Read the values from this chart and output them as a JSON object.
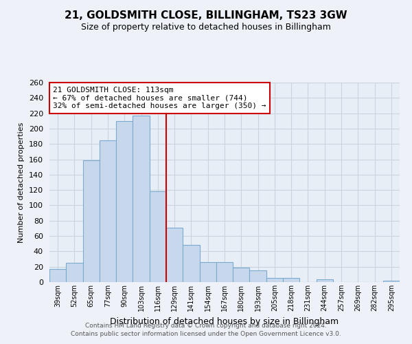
{
  "title": "21, GOLDSMITH CLOSE, BILLINGHAM, TS23 3GW",
  "subtitle": "Size of property relative to detached houses in Billingham",
  "xlabel": "Distribution of detached houses by size in Billingham",
  "ylabel": "Number of detached properties",
  "bar_labels": [
    "39sqm",
    "52sqm",
    "65sqm",
    "77sqm",
    "90sqm",
    "103sqm",
    "116sqm",
    "129sqm",
    "141sqm",
    "154sqm",
    "167sqm",
    "180sqm",
    "193sqm",
    "205sqm",
    "218sqm",
    "231sqm",
    "244sqm",
    "257sqm",
    "269sqm",
    "282sqm",
    "295sqm"
  ],
  "bar_values": [
    17,
    25,
    159,
    185,
    210,
    217,
    118,
    71,
    48,
    26,
    26,
    19,
    15,
    5,
    5,
    0,
    4,
    0,
    0,
    0,
    2
  ],
  "bar_color": "#c8d8ec",
  "bar_edge_color": "#7aaad0",
  "highlight_line_color": "#cc0000",
  "highlight_index": 6,
  "annotation_title": "21 GOLDSMITH CLOSE: 113sqm",
  "annotation_line1": "← 67% of detached houses are smaller (744)",
  "annotation_line2": "32% of semi-detached houses are larger (350) →",
  "annotation_box_color": "#ffffff",
  "annotation_box_edge": "#cc0000",
  "footer1": "Contains HM Land Registry data © Crown copyright and database right 2024.",
  "footer2": "Contains public sector information licensed under the Open Government Licence v3.0.",
  "ylim": [
    0,
    260
  ],
  "yticks": [
    0,
    20,
    40,
    60,
    80,
    100,
    120,
    140,
    160,
    180,
    200,
    220,
    240,
    260
  ],
  "background_color": "#eef2f8",
  "plot_bg_color": "#e8eef6",
  "grid_color": "#c8d4e0",
  "title_fontsize": 11,
  "subtitle_fontsize": 9,
  "xlabel_fontsize": 9,
  "ylabel_fontsize": 8
}
